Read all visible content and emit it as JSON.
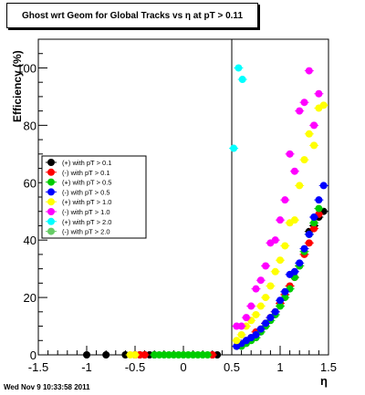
{
  "title": "Ghost wrt Geom for Global Tracks vs    η at pT > 0.11",
  "footer": "Wed Nov  9 10:33:58 2011",
  "chart_data": {
    "type": "scatter",
    "xlabel": "η",
    "ylabel": "Efficiency (%)",
    "xlim": [
      -1.5,
      1.5
    ],
    "ylim": [
      0,
      110
    ],
    "xticks": [
      -1.5,
      -1,
      -0.5,
      0,
      0.5,
      1,
      1.5
    ],
    "xtick_labels": [
      "-1.5",
      "-1",
      "-0.5",
      "0",
      "0.5",
      "1",
      "1.5"
    ],
    "yticks": [
      0,
      20,
      40,
      60,
      80,
      100
    ],
    "ytick_labels": [
      "0",
      "20",
      "40",
      "60",
      "80",
      "100"
    ],
    "vertical_line_x": 0.5,
    "legend_position": "left",
    "series": [
      {
        "name": "(+) with pT > 0.1",
        "color": "#000000",
        "x": [
          -1.0,
          -0.8,
          -0.6,
          -0.5,
          -0.45,
          -0.4,
          -0.35,
          -0.3,
          0.3,
          0.35,
          1.3,
          1.35,
          1.4,
          1.45
        ],
        "y": [
          0,
          0,
          0,
          0,
          0,
          0,
          0,
          0,
          0,
          0,
          43,
          45,
          48,
          50
        ]
      },
      {
        "name": "(-) with pT > 0.1",
        "color": "#ff0000",
        "x": [
          -0.5,
          -0.45,
          -0.4,
          0.3,
          0.55,
          0.6,
          0.65,
          0.7,
          0.75,
          0.8,
          0.85,
          0.9,
          0.95,
          1.0,
          1.05,
          1.1,
          1.15,
          1.2,
          1.25,
          1.3,
          1.35,
          1.4
        ],
        "y": [
          0,
          0,
          0,
          0,
          3,
          4,
          5,
          6,
          8,
          9,
          11,
          13,
          15,
          18,
          21,
          24,
          27,
          31,
          35,
          39,
          44,
          49
        ]
      },
      {
        "name": "(+) with pT > 0.5",
        "color": "#00cc00",
        "x": [
          -0.3,
          -0.25,
          -0.2,
          -0.15,
          -0.1,
          -0.05,
          0.0,
          0.05,
          0.1,
          0.15,
          0.2,
          0.25,
          0.55,
          0.6,
          0.65,
          0.7,
          0.75,
          0.8,
          0.85,
          0.9,
          0.95,
          1.0,
          1.05,
          1.1,
          1.15,
          1.2,
          1.25,
          1.3,
          1.35,
          1.4
        ],
        "y": [
          0,
          0,
          0,
          0,
          0,
          0,
          0,
          0,
          0,
          0,
          0,
          0,
          3,
          3,
          4,
          5,
          6,
          8,
          10,
          12,
          14,
          17,
          20,
          23,
          27,
          31,
          36,
          42,
          46,
          51
        ]
      },
      {
        "name": "(-) with pT > 0.5",
        "color": "#0000ff",
        "x": [
          0.55,
          0.6,
          0.65,
          0.7,
          0.75,
          0.8,
          0.85,
          0.9,
          0.95,
          1.0,
          1.05,
          1.1,
          1.15,
          1.2,
          1.25,
          1.3,
          1.35,
          1.4,
          1.45
        ],
        "y": [
          3,
          4,
          5,
          6,
          7,
          9,
          11,
          13,
          15,
          19,
          22,
          28,
          29,
          32,
          37,
          42,
          48,
          54,
          59
        ]
      },
      {
        "name": "(+) with pT > 1.0",
        "color": "#ffff00",
        "x": [
          -0.55,
          -0.5,
          0.55,
          0.6,
          0.65,
          0.7,
          0.75,
          0.8,
          0.85,
          0.9,
          0.95,
          1.0,
          1.05,
          1.1,
          1.15,
          1.2,
          1.25,
          1.3,
          1.35,
          1.4,
          1.45
        ],
        "y": [
          0,
          0,
          5,
          7,
          10,
          12,
          14,
          17,
          20,
          24,
          29,
          33,
          38,
          46,
          47,
          59,
          68,
          77,
          73,
          86,
          87
        ]
      },
      {
        "name": "(-) with pT > 1.0",
        "color": "#ff00ff",
        "x": [
          0.55,
          0.6,
          0.65,
          0.7,
          0.75,
          0.8,
          0.85,
          0.9,
          0.95,
          1.0,
          1.05,
          1.1,
          1.15,
          1.2,
          1.25,
          1.3,
          1.35,
          1.4
        ],
        "y": [
          10,
          10,
          13,
          17,
          23,
          26,
          31,
          39,
          40,
          47,
          54,
          70,
          64,
          85,
          88,
          99,
          80,
          91
        ]
      },
      {
        "name": "(+) with pT > 2.0",
        "color": "#00ffff",
        "x": [
          0.52,
          0.57,
          0.61
        ],
        "y": [
          72,
          100,
          96
        ]
      },
      {
        "name": "(-) with pT > 2.0",
        "color": "#66cc66",
        "x": [],
        "y": []
      }
    ]
  }
}
